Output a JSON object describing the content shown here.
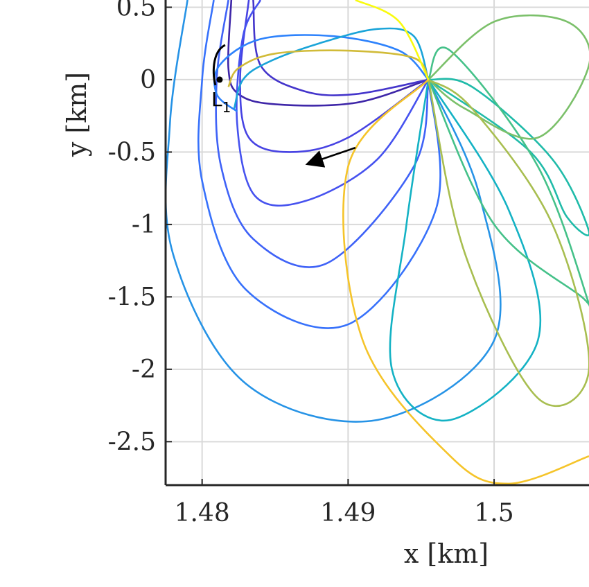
{
  "chart_data": {
    "type": "line",
    "title": "",
    "xlabel": "x [km]",
    "ylabel": "y [km]",
    "xlim": [
      1.4775,
      1.5065
    ],
    "ylim": [
      -2.8,
      0.55
    ],
    "xticks": [
      1.48,
      1.49,
      1.5
    ],
    "xtick_labels": [
      "1.48",
      "1.49",
      "1.5"
    ],
    "yticks": [
      0.5,
      0,
      -0.5,
      -1,
      -1.5,
      -2,
      -2.5
    ],
    "ytick_labels": [
      "0.5",
      "0",
      "-0.5",
      "-1",
      "-1.5",
      "-2",
      "-2.5"
    ],
    "grid": true,
    "colormap": "parula",
    "axis_color": "#262626",
    "grid_color": "#d9d9d9",
    "annotation": {
      "text": "L",
      "subscript": "1",
      "x": 1.4812,
      "y": 0.0
    },
    "arrow": {
      "from": [
        1.4905,
        -0.47
      ],
      "to": [
        1.4873,
        -0.58
      ],
      "color": "#000000"
    },
    "series": [
      {
        "color": "#3e26a8",
        "points": [
          [
            1.4955,
            0
          ],
          [
            1.4905,
            -0.16
          ],
          [
            1.485,
            -0.17
          ],
          [
            1.4825,
            -0.1
          ],
          [
            1.4818,
            0.08
          ],
          [
            1.482,
            0.55
          ]
        ]
      },
      {
        "color": "#4435cb",
        "points": [
          [
            1.4955,
            0
          ],
          [
            1.4905,
            -0.1
          ],
          [
            1.487,
            -0.08
          ],
          [
            1.484,
            0.1
          ],
          [
            1.4835,
            0.55
          ]
        ]
      },
      {
        "color": "#4743e3",
        "points": [
          [
            1.4955,
            0
          ],
          [
            1.49,
            -0.4
          ],
          [
            1.486,
            -0.5
          ],
          [
            1.4832,
            -0.4
          ],
          [
            1.4826,
            0.0
          ],
          [
            1.4832,
            0.55
          ]
        ]
      },
      {
        "color": "#4652ef",
        "points": [
          [
            1.4955,
            0
          ],
          [
            1.492,
            -0.55
          ],
          [
            1.487,
            -0.84
          ],
          [
            1.4836,
            -0.8
          ],
          [
            1.4824,
            -0.3
          ],
          [
            1.4828,
            0.3
          ],
          [
            1.484,
            0.55
          ]
        ]
      },
      {
        "color": "#3f62f7",
        "points": [
          [
            1.4955,
            0
          ],
          [
            1.4945,
            -0.6
          ],
          [
            1.4885,
            -1.27
          ],
          [
            1.4835,
            -1.1
          ],
          [
            1.4813,
            -0.6
          ],
          [
            1.481,
            0.0
          ],
          [
            1.4818,
            0.55
          ]
        ]
      },
      {
        "color": "#3771fb",
        "points": [
          [
            1.4955,
            0
          ],
          [
            1.496,
            -0.9
          ],
          [
            1.49,
            -1.69
          ],
          [
            1.483,
            -1.45
          ],
          [
            1.48,
            -0.7
          ],
          [
            1.48,
            0.0
          ],
          [
            1.4808,
            0.55
          ]
        ]
      },
      {
        "color": "#2d82fc",
        "points": [
          [
            1.4955,
            0
          ],
          [
            1.4935,
            0.2
          ],
          [
            1.489,
            0.3
          ],
          [
            1.484,
            0.28
          ],
          [
            1.4812,
            0.1
          ],
          [
            1.481,
            -0.1
          ],
          [
            1.4824,
            -0.22
          ]
        ]
      },
      {
        "color": "#2693e6",
        "points": [
          [
            1.4955,
            0
          ],
          [
            1.499,
            -0.8
          ],
          [
            1.5,
            -1.8
          ],
          [
            1.492,
            -2.35
          ],
          [
            1.483,
            -2.1
          ],
          [
            1.478,
            -1.2
          ],
          [
            1.4778,
            -0.3
          ],
          [
            1.479,
            0.55
          ]
        ]
      },
      {
        "color": "#1aa4d8",
        "points": [
          [
            1.4955,
            0
          ],
          [
            1.4945,
            0.3
          ],
          [
            1.492,
            0.35
          ],
          [
            1.488,
            0.25
          ],
          [
            1.4845,
            0.12
          ],
          [
            1.4828,
            0.0
          ],
          [
            1.4822,
            -0.2
          ]
        ]
      },
      {
        "color": "#14b2c4",
        "points": [
          [
            1.4955,
            0
          ],
          [
            1.501,
            -0.9
          ],
          [
            1.503,
            -1.8
          ],
          [
            1.497,
            -2.35
          ],
          [
            1.493,
            -2.0
          ],
          [
            1.494,
            -1.0
          ],
          [
            1.4955,
            0
          ]
        ]
      },
      {
        "color": "#20bba9",
        "points": [
          [
            1.4955,
            0
          ],
          [
            1.5025,
            -0.5
          ],
          [
            1.505,
            -0.95
          ],
          [
            1.5065,
            -1.05
          ],
          [
            1.504,
            -0.55
          ],
          [
            1.4985,
            -0.05
          ],
          [
            1.4955,
            0
          ]
        ]
      },
      {
        "color": "#45c189",
        "points": [
          [
            1.4955,
            0
          ],
          [
            1.5,
            -1.0
          ],
          [
            1.506,
            -1.5
          ],
          [
            1.5065,
            -1.55
          ],
          [
            1.503,
            -0.6
          ],
          [
            1.497,
            0.2
          ],
          [
            1.4955,
            0
          ]
        ]
      },
      {
        "color": "#7bc06a",
        "points": [
          [
            1.4955,
            0
          ],
          [
            1.5,
            0.4
          ],
          [
            1.505,
            0.4
          ],
          [
            1.5065,
            0.1
          ],
          [
            1.503,
            -0.4
          ],
          [
            1.498,
            -0.2
          ],
          [
            1.4955,
            0
          ]
        ]
      },
      {
        "color": "#a8be50",
        "points": [
          [
            1.4955,
            0
          ],
          [
            1.498,
            -1.2
          ],
          [
            1.503,
            -2.2
          ],
          [
            1.5065,
            -2.0
          ],
          [
            1.504,
            -1.0
          ],
          [
            1.4985,
            -0.2
          ],
          [
            1.4955,
            0
          ]
        ]
      },
      {
        "color": "#d1bb38",
        "points": [
          [
            1.4955,
            0
          ],
          [
            1.4945,
            0.15
          ],
          [
            1.49,
            0.2
          ],
          [
            1.485,
            0.18
          ],
          [
            1.4825,
            0.08
          ],
          [
            1.4818,
            -0.05
          ]
        ]
      },
      {
        "color": "#f5c42a",
        "points": [
          [
            1.4955,
            0
          ],
          [
            1.49,
            -0.6
          ],
          [
            1.491,
            -1.8
          ],
          [
            1.497,
            -2.6
          ],
          [
            1.501,
            -2.79
          ],
          [
            1.5065,
            -2.6
          ]
        ]
      },
      {
        "color": "#f9fb0e",
        "points": [
          [
            1.4955,
            0
          ],
          [
            1.4935,
            0.4
          ],
          [
            1.4905,
            0.55
          ]
        ]
      }
    ]
  }
}
